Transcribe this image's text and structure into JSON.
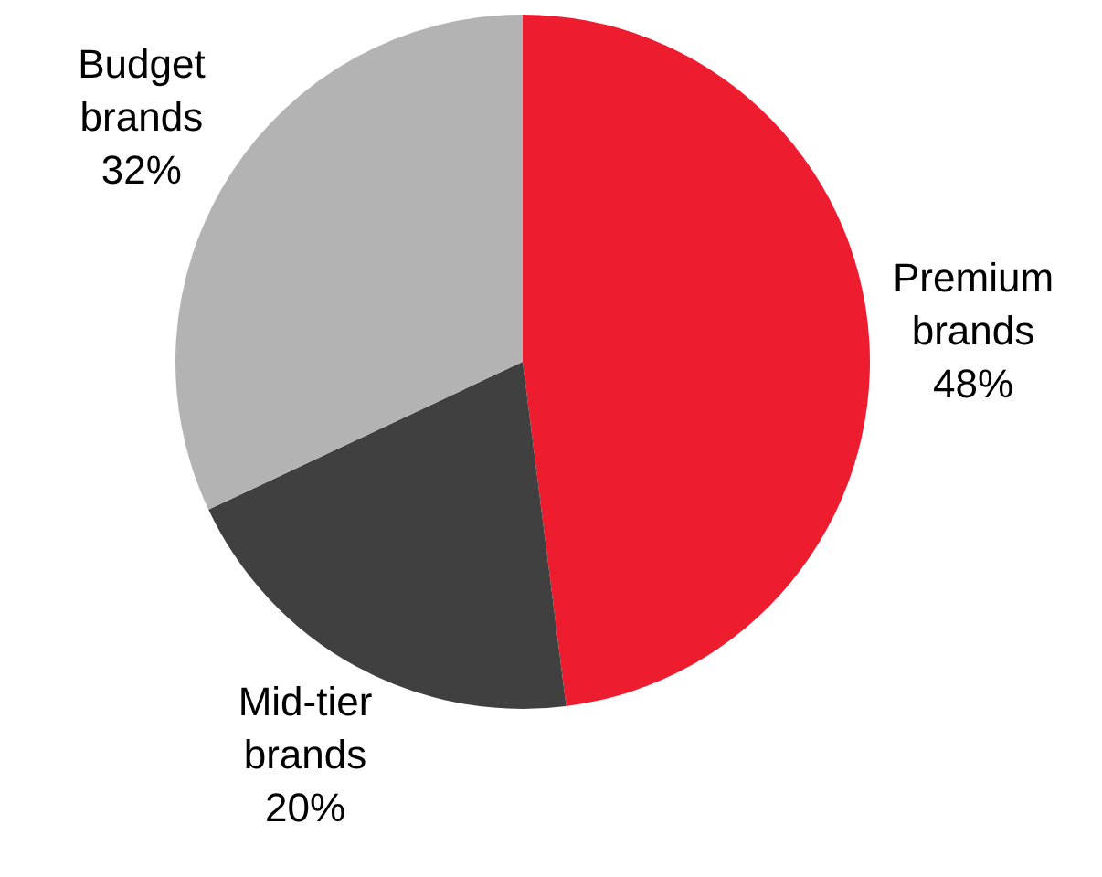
{
  "chart_data": {
    "type": "pie",
    "categories": [
      "Premium brands",
      "Mid-tier brands",
      "Budget brands"
    ],
    "values": [
      48,
      20,
      32
    ],
    "colors": [
      "#ed1c2e",
      "#404040",
      "#b3b3b3"
    ],
    "value_labels": [
      "48%",
      "20%",
      "32%"
    ],
    "legend": false
  }
}
